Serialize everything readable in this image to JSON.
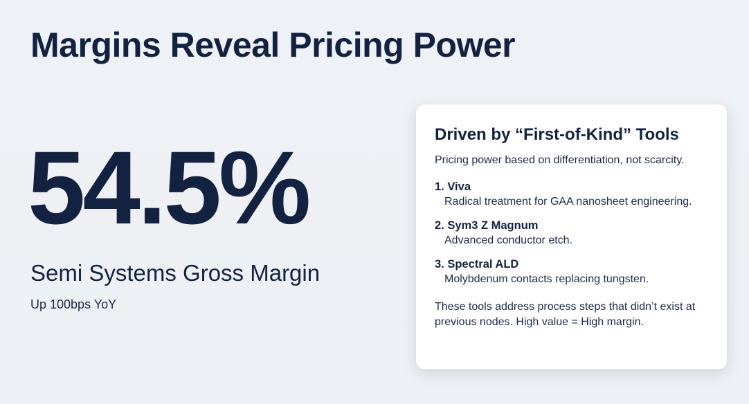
{
  "slide": {
    "title": "Margins Reveal Pricing Power"
  },
  "metric": {
    "value": "54.5%",
    "label": "Semi Systems Gross Margin",
    "sub": "Up 100bps YoY"
  },
  "card": {
    "title": "Driven by “First-of-Kind” Tools",
    "intro": "Pricing power based on differentiation, not scarcity.",
    "tools": [
      {
        "name": "1. Viva",
        "desc": "Radical treatment for GAA nanosheet engineering."
      },
      {
        "name": "2. Sym3 Z Magnum",
        "desc": "Advanced conductor etch."
      },
      {
        "name": "3. Spectral ALD",
        "desc": "Molybdenum contacts replacing tungsten."
      }
    ],
    "footer": "These tools address process steps that didn’t exist at previous nodes. High value = High margin."
  }
}
